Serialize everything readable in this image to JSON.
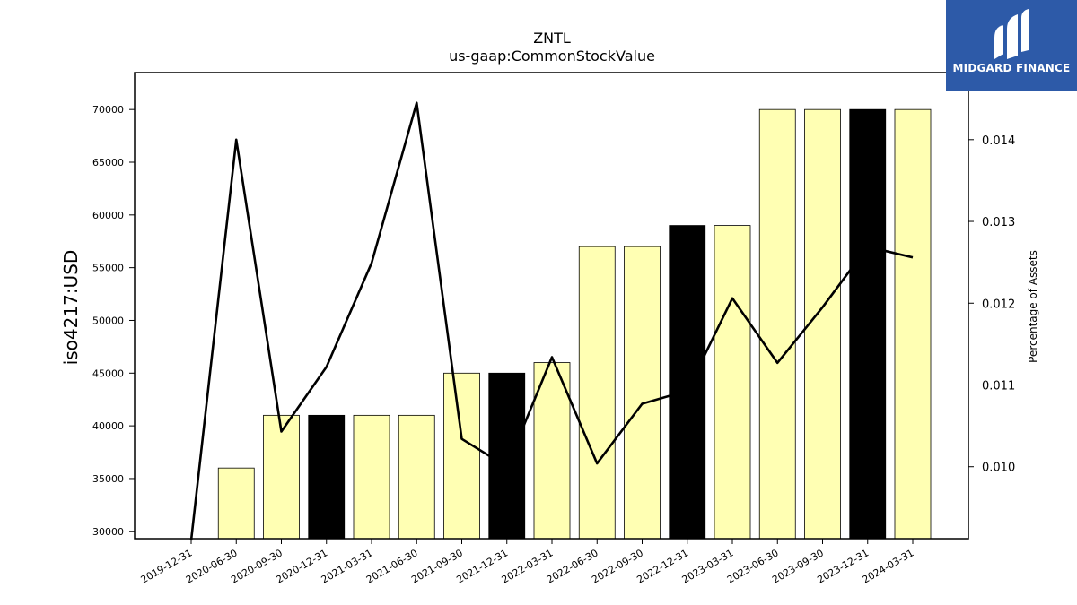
{
  "brand": {
    "name": "MIDGARD FINANCE",
    "bg_color": "#2d5aa8"
  },
  "chart_data": {
    "type": "bar",
    "title": "ZNTL",
    "subtitle": "us-gaap:CommonStockValue",
    "ylabel": "iso4217:USD",
    "y2label": "Percentage of Assets",
    "categories": [
      "2019-12-31",
      "2020-06-30",
      "2020-09-30",
      "2020-12-31",
      "2021-03-31",
      "2021-06-30",
      "2021-09-30",
      "2021-12-31",
      "2022-03-31",
      "2022-06-30",
      "2022-09-30",
      "2022-12-31",
      "2023-03-31",
      "2023-06-30",
      "2023-09-30",
      "2023-12-31",
      "2024-03-31"
    ],
    "values": [
      null,
      36000,
      41000,
      41000,
      41000,
      41000,
      45000,
      45000,
      46000,
      57000,
      57000,
      59000,
      59000,
      70000,
      70000,
      70000,
      70000
    ],
    "bar_colors": [
      "#ffffb3",
      "#ffffb3",
      "#ffffb3",
      "#000000",
      "#ffffb3",
      "#ffffb3",
      "#ffffb3",
      "#000000",
      "#ffffb3",
      "#ffffb3",
      "#ffffb3",
      "#000000",
      "#ffffb3",
      "#ffffb3",
      "#ffffb3",
      "#000000",
      "#ffffb3"
    ],
    "line_values": [
      0.00885,
      0.014,
      0.01043,
      0.01122,
      0.01249,
      0.01445,
      0.01034,
      0.01,
      0.01134,
      0.01004,
      0.01077,
      0.01093,
      0.01206,
      0.01127,
      0.01195,
      0.01269,
      0.01256
    ],
    "ylim": [
      29300,
      73500
    ],
    "yticks": [
      30000,
      35000,
      40000,
      45000,
      50000,
      55000,
      60000,
      65000,
      70000
    ],
    "y2lim": [
      0.00912,
      0.01482
    ],
    "y2ticks": [
      "0.010",
      "0.011",
      "0.012",
      "0.013",
      "0.014"
    ],
    "grid": false
  }
}
